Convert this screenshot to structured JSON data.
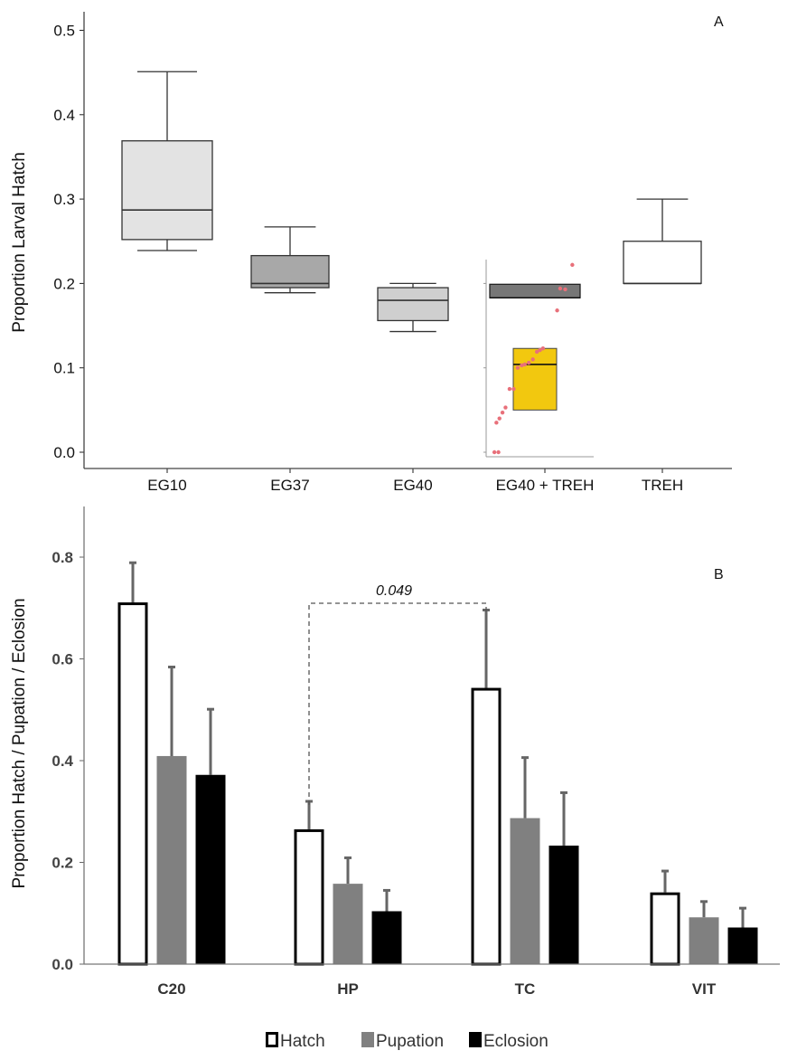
{
  "chart_data": [
    {
      "type": "box",
      "panel_label": "A",
      "ylabel": "Proportion Larval Hatch",
      "ylim": [
        0,
        0.5
      ],
      "yticks": [
        "0.0",
        "0.1",
        "0.2",
        "0.3",
        "0.4",
        "0.5"
      ],
      "categories": [
        "EG10",
        "EG37",
        "EG40",
        "EG40 + TREH",
        "TREH"
      ],
      "boxes": [
        {
          "name": "EG10",
          "min": 0.239,
          "q1": 0.252,
          "median": 0.287,
          "q3": 0.369,
          "max": 0.451,
          "fill": "#e3e3e3"
        },
        {
          "name": "EG37",
          "min": 0.189,
          "q1": 0.195,
          "median": 0.2,
          "q3": 0.233,
          "max": 0.267,
          "fill": "#a8a8a8"
        },
        {
          "name": "EG40",
          "min": 0.143,
          "q1": 0.156,
          "median": 0.18,
          "q3": 0.195,
          "max": 0.2,
          "fill": "#cfcfcf"
        },
        {
          "name": "TREH",
          "min": 0.2,
          "q1": 0.2,
          "median": 0.2,
          "q3": 0.25,
          "max": 0.3,
          "fill": "#ffffff"
        }
      ],
      "inset": {
        "category": "EG40 + TREH",
        "boxes": [
          {
            "q1": 0.183,
            "median": 0.183,
            "q3": 0.199,
            "fill": "#777777"
          },
          {
            "q1": 0.05,
            "median": 0.104,
            "q3": 0.123,
            "fill": "#f2c80f"
          }
        ],
        "points": [
          {
            "x": 0.78,
            "y": 0.222
          },
          {
            "x": 0.71,
            "y": 0.193
          },
          {
            "x": 0.66,
            "y": 0.194
          },
          {
            "x": 0.63,
            "y": 0.168
          },
          {
            "x": 0.49,
            "y": 0.123
          },
          {
            "x": 0.46,
            "y": 0.121
          },
          {
            "x": 0.43,
            "y": 0.119
          },
          {
            "x": 0.39,
            "y": 0.11
          },
          {
            "x": 0.35,
            "y": 0.106
          },
          {
            "x": 0.31,
            "y": 0.104
          },
          {
            "x": 0.28,
            "y": 0.103
          },
          {
            "x": 0.24,
            "y": 0.1
          },
          {
            "x": 0.2,
            "y": 0.075
          },
          {
            "x": 0.16,
            "y": 0.075
          },
          {
            "x": 0.12,
            "y": 0.053
          },
          {
            "x": 0.09,
            "y": 0.047
          },
          {
            "x": 0.06,
            "y": 0.04
          },
          {
            "x": 0.03,
            "y": 0.035
          },
          {
            "x": 0.01,
            "y": 0.0
          },
          {
            "x": 0.05,
            "y": 0.0
          }
        ],
        "point_color": "#e8707a"
      }
    },
    {
      "type": "bar",
      "panel_label": "B",
      "ylabel": "Proportion Hatch / Pupation / Eclosion",
      "ylim": [
        0,
        0.9
      ],
      "yticks": [
        "0.0",
        "0.2",
        "0.4",
        "0.6",
        "0.8"
      ],
      "categories": [
        "C20",
        "HP",
        "TC",
        "VIT"
      ],
      "series": [
        {
          "name": "Hatch",
          "values": [
            0.711,
            0.265,
            0.543,
            0.141
          ],
          "errors": [
            0.078,
            0.055,
            0.153,
            0.042
          ],
          "fill": "#ffffff",
          "stroke": "#000000"
        },
        {
          "name": "Pupation",
          "values": [
            0.409,
            0.158,
            0.287,
            0.092
          ],
          "errors": [
            0.175,
            0.051,
            0.119,
            0.031
          ],
          "fill": "#808080",
          "stroke": "#808080"
        },
        {
          "name": "Eclosion",
          "values": [
            0.372,
            0.104,
            0.233,
            0.072
          ],
          "errors": [
            0.129,
            0.041,
            0.104,
            0.038
          ],
          "fill": "#000000",
          "stroke": "#000000"
        }
      ],
      "annotation": {
        "text": "0.049",
        "between": [
          "HP",
          "TC"
        ],
        "series": "Hatch"
      },
      "legend": [
        "Hatch",
        "Pupation",
        "Eclosion"
      ]
    }
  ]
}
